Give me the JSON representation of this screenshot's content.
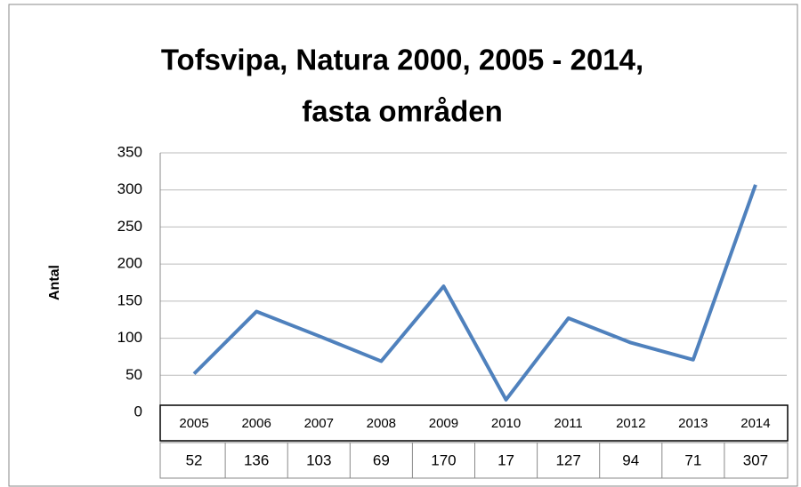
{
  "chart_data": {
    "type": "line",
    "title": [
      "Tofsvipa, Natura 2000, 2005 - 2014,",
      "fasta områden"
    ],
    "y_label": "Antal",
    "categories": [
      "2005",
      "2006",
      "2007",
      "2008",
      "2009",
      "2010",
      "2011",
      "2012",
      "2013",
      "2014"
    ],
    "values": [
      52,
      136,
      103,
      69,
      170,
      17,
      127,
      94,
      71,
      307
    ],
    "color": "#4f81bd",
    "ylim": [
      0,
      350
    ],
    "yticks": [
      0,
      50,
      100,
      150,
      200,
      250,
      300,
      350
    ],
    "grid": true
  }
}
